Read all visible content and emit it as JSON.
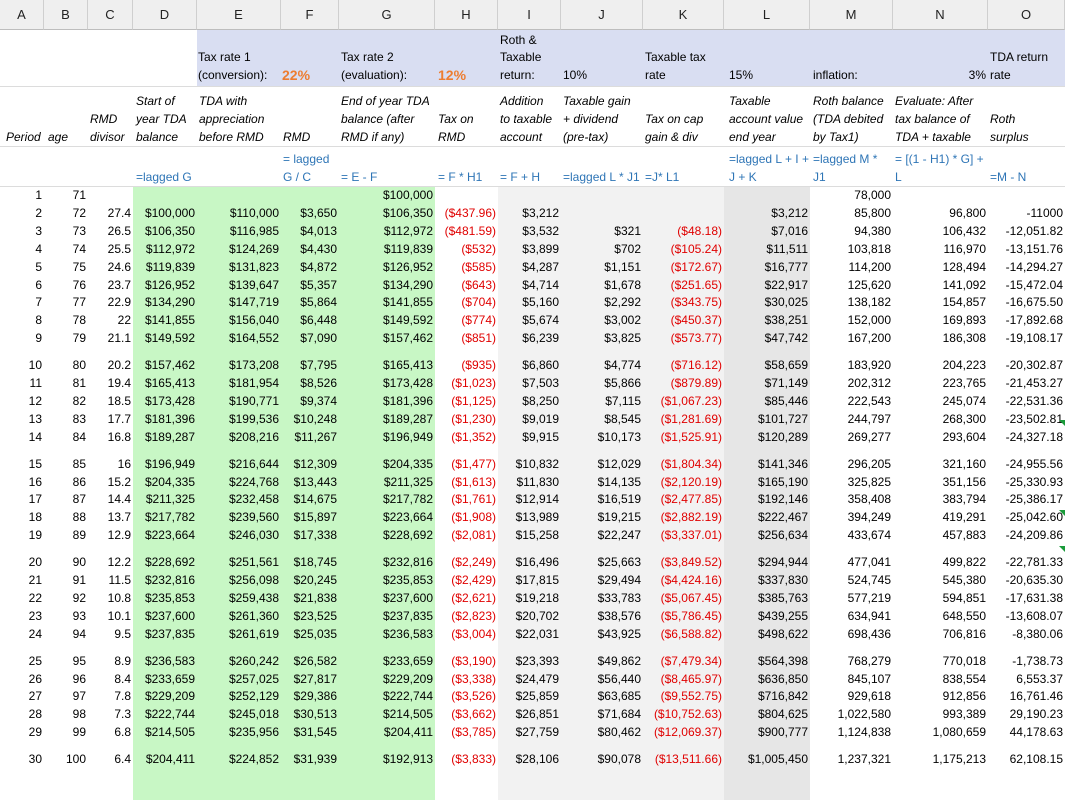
{
  "columns": [
    "A",
    "B",
    "C",
    "D",
    "E",
    "F",
    "G",
    "H",
    "I",
    "J",
    "K",
    "L",
    "M",
    "N",
    "O"
  ],
  "header": {
    "row1": {
      "e": "Tax rate 1",
      "e2": "(conversion):",
      "f": "22%",
      "g": "Tax rate 2",
      "g2": "(evaluation):",
      "h": "12%",
      "i1": "Roth &",
      "i2": "Taxable",
      "i3": "return:",
      "j": "10%",
      "k1": "Taxable tax",
      "k2": "rate",
      "l": "15%",
      "m": "inflation:",
      "n": "3%",
      "o1": "TDA return",
      "o2": "rate"
    },
    "row2": {
      "a": "Period",
      "b": "age",
      "c1": "RMD",
      "c2": "divisor",
      "d1": "Start of",
      "d2": "year TDA",
      "d3": "balance",
      "e1": "TDA with",
      "e2": "appreciation",
      "e3": "before RMD",
      "f": "RMD",
      "g1": "End of year TDA",
      "g2": "balance (after",
      "g3": "RMD if any)",
      "h1": "Tax on",
      "h2": "RMD",
      "i1": "Addition",
      "i2": "to taxable",
      "i3": "account",
      "j1": "Taxable gain",
      "j2": "+ dividend",
      "j3": "(pre-tax)",
      "k1": "Tax on cap",
      "k2": "gain & div",
      "l1": "Taxable",
      "l2": "account value",
      "l3": "end year",
      "m1": "Roth balance",
      "m2": "(TDA debited",
      "m3": "by Tax1)",
      "n1": "Evaluate: After",
      "n2": "tax balance of",
      "n3": "TDA + taxable",
      "o1": "Roth",
      "o2": "surplus"
    },
    "row3": {
      "d": "=lagged G",
      "f1": "= lagged",
      "f2": "G / C",
      "g": "= E - F",
      "h": "= F * H1",
      "i": "= F + H",
      "j": "=lagged L * J1",
      "k": "=J* L1",
      "l1": "=lagged L + I +",
      "l2": "J + K",
      "m1": "=lagged M *",
      "m2": "J1",
      "n1": "= [(1 - H1) * G] +",
      "n2": "L",
      "o": "=M - N"
    }
  },
  "rows": [
    {
      "a": "1",
      "b": "71",
      "c": "",
      "d": "",
      "e": "",
      "f": "",
      "g": "$100,000",
      "h": "",
      "i": "",
      "j": "",
      "k": "",
      "l": "",
      "m": "78,000",
      "n": "",
      "o": ""
    },
    {
      "a": "2",
      "b": "72",
      "c": "27.4",
      "d": "$100,000",
      "e": "$110,000",
      "f": "$3,650",
      "g": "$106,350",
      "h": "($437.96)",
      "i": "$3,212",
      "j": "",
      "k": "",
      "l": "$3,212",
      "m": "85,800",
      "n": "96,800",
      "o": "-11000"
    },
    {
      "a": "3",
      "b": "73",
      "c": "26.5",
      "d": "$106,350",
      "e": "$116,985",
      "f": "$4,013",
      "g": "$112,972",
      "h": "($481.59)",
      "i": "$3,532",
      "j": "$321",
      "k": "($48.18)",
      "l": "$7,016",
      "m": "94,380",
      "n": "106,432",
      "o": "-12,051.82"
    },
    {
      "a": "4",
      "b": "74",
      "c": "25.5",
      "d": "$112,972",
      "e": "$124,269",
      "f": "$4,430",
      "g": "$119,839",
      "h": "($532)",
      "i": "$3,899",
      "j": "$702",
      "k": "($105.24)",
      "l": "$11,511",
      "m": "103,818",
      "n": "116,970",
      "o": "-13,151.76"
    },
    {
      "a": "5",
      "b": "75",
      "c": "24.6",
      "d": "$119,839",
      "e": "$131,823",
      "f": "$4,872",
      "g": "$126,952",
      "h": "($585)",
      "i": "$4,287",
      "j": "$1,151",
      "k": "($172.67)",
      "l": "$16,777",
      "m": "114,200",
      "n": "128,494",
      "o": "-14,294.27"
    },
    {
      "a": "6",
      "b": "76",
      "c": "23.7",
      "d": "$126,952",
      "e": "$139,647",
      "f": "$5,357",
      "g": "$134,290",
      "h": "($643)",
      "i": "$4,714",
      "j": "$1,678",
      "k": "($251.65)",
      "l": "$22,917",
      "m": "125,620",
      "n": "141,092",
      "o": "-15,472.04"
    },
    {
      "a": "7",
      "b": "77",
      "c": "22.9",
      "d": "$134,290",
      "e": "$147,719",
      "f": "$5,864",
      "g": "$141,855",
      "h": "($704)",
      "i": "$5,160",
      "j": "$2,292",
      "k": "($343.75)",
      "l": "$30,025",
      "m": "138,182",
      "n": "154,857",
      "o": "-16,675.50"
    },
    {
      "a": "8",
      "b": "78",
      "c": "22",
      "d": "$141,855",
      "e": "$156,040",
      "f": "$6,448",
      "g": "$149,592",
      "h": "($774)",
      "i": "$5,674",
      "j": "$3,002",
      "k": "($450.37)",
      "l": "$38,251",
      "m": "152,000",
      "n": "169,893",
      "o": "-17,892.68"
    },
    {
      "a": "9",
      "b": "79",
      "c": "21.1",
      "d": "$149,592",
      "e": "$164,552",
      "f": "$7,090",
      "g": "$157,462",
      "h": "($851)",
      "i": "$6,239",
      "j": "$3,825",
      "k": "($573.77)",
      "l": "$47,742",
      "m": "167,200",
      "n": "186,308",
      "o": "-19,108.17"
    },
    {
      "a": "10",
      "b": "80",
      "c": "20.2",
      "d": "$157,462",
      "e": "$173,208",
      "f": "$7,795",
      "g": "$165,413",
      "h": "($935)",
      "i": "$6,860",
      "j": "$4,774",
      "k": "($716.12)",
      "l": "$58,659",
      "m": "183,920",
      "n": "204,223",
      "o": "-20,302.87"
    },
    {
      "a": "11",
      "b": "81",
      "c": "19.4",
      "d": "$165,413",
      "e": "$181,954",
      "f": "$8,526",
      "g": "$173,428",
      "h": "($1,023)",
      "i": "$7,503",
      "j": "$5,866",
      "k": "($879.89)",
      "l": "$71,149",
      "m": "202,312",
      "n": "223,765",
      "o": "-21,453.27"
    },
    {
      "a": "12",
      "b": "82",
      "c": "18.5",
      "d": "$173,428",
      "e": "$190,771",
      "f": "$9,374",
      "g": "$181,396",
      "h": "($1,125)",
      "i": "$8,250",
      "j": "$7,115",
      "k": "($1,067.23)",
      "l": "$85,446",
      "m": "222,543",
      "n": "245,074",
      "o": "-22,531.36"
    },
    {
      "a": "13",
      "b": "83",
      "c": "17.7",
      "d": "$181,396",
      "e": "$199,536",
      "f": "$10,248",
      "g": "$189,287",
      "h": "($1,230)",
      "i": "$9,019",
      "j": "$8,545",
      "k": "($1,281.69)",
      "l": "$101,727",
      "m": "244,797",
      "n": "268,300",
      "o": "-23,502.81"
    },
    {
      "a": "14",
      "b": "84",
      "c": "16.8",
      "d": "$189,287",
      "e": "$208,216",
      "f": "$11,267",
      "g": "$196,949",
      "h": "($1,352)",
      "i": "$9,915",
      "j": "$10,173",
      "k": "($1,525.91)",
      "l": "$120,289",
      "m": "269,277",
      "n": "293,604",
      "o": "-24,327.18"
    },
    {
      "a": "15",
      "b": "85",
      "c": "16",
      "d": "$196,949",
      "e": "$216,644",
      "f": "$12,309",
      "g": "$204,335",
      "h": "($1,477)",
      "i": "$10,832",
      "j": "$12,029",
      "k": "($1,804.34)",
      "l": "$141,346",
      "m": "296,205",
      "n": "321,160",
      "o": "-24,955.56"
    },
    {
      "a": "16",
      "b": "86",
      "c": "15.2",
      "d": "$204,335",
      "e": "$224,768",
      "f": "$13,443",
      "g": "$211,325",
      "h": "($1,613)",
      "i": "$11,830",
      "j": "$14,135",
      "k": "($2,120.19)",
      "l": "$165,190",
      "m": "325,825",
      "n": "351,156",
      "o": "-25,330.93"
    },
    {
      "a": "17",
      "b": "87",
      "c": "14.4",
      "d": "$211,325",
      "e": "$232,458",
      "f": "$14,675",
      "g": "$217,782",
      "h": "($1,761)",
      "i": "$12,914",
      "j": "$16,519",
      "k": "($2,477.85)",
      "l": "$192,146",
      "m": "358,408",
      "n": "383,794",
      "o": "-25,386.17"
    },
    {
      "a": "18",
      "b": "88",
      "c": "13.7",
      "d": "$217,782",
      "e": "$239,560",
      "f": "$15,897",
      "g": "$223,664",
      "h": "($1,908)",
      "i": "$13,989",
      "j": "$19,215",
      "k": "($2,882.19)",
      "l": "$222,467",
      "m": "394,249",
      "n": "419,291",
      "o": "-25,042.60"
    },
    {
      "a": "19",
      "b": "89",
      "c": "12.9",
      "d": "$223,664",
      "e": "$246,030",
      "f": "$17,338",
      "g": "$228,692",
      "h": "($2,081)",
      "i": "$15,258",
      "j": "$22,247",
      "k": "($3,337.01)",
      "l": "$256,634",
      "m": "433,674",
      "n": "457,883",
      "o": "-24,209.86"
    },
    {
      "a": "20",
      "b": "90",
      "c": "12.2",
      "d": "$228,692",
      "e": "$251,561",
      "f": "$18,745",
      "g": "$232,816",
      "h": "($2,249)",
      "i": "$16,496",
      "j": "$25,663",
      "k": "($3,849.52)",
      "l": "$294,944",
      "m": "477,041",
      "n": "499,822",
      "o": "-22,781.33"
    },
    {
      "a": "21",
      "b": "91",
      "c": "11.5",
      "d": "$232,816",
      "e": "$256,098",
      "f": "$20,245",
      "g": "$235,853",
      "h": "($2,429)",
      "i": "$17,815",
      "j": "$29,494",
      "k": "($4,424.16)",
      "l": "$337,830",
      "m": "524,745",
      "n": "545,380",
      "o": "-20,635.30"
    },
    {
      "a": "22",
      "b": "92",
      "c": "10.8",
      "d": "$235,853",
      "e": "$259,438",
      "f": "$21,838",
      "g": "$237,600",
      "h": "($2,621)",
      "i": "$19,218",
      "j": "$33,783",
      "k": "($5,067.45)",
      "l": "$385,763",
      "m": "577,219",
      "n": "594,851",
      "o": "-17,631.38"
    },
    {
      "a": "23",
      "b": "93",
      "c": "10.1",
      "d": "$237,600",
      "e": "$261,360",
      "f": "$23,525",
      "g": "$237,835",
      "h": "($2,823)",
      "i": "$20,702",
      "j": "$38,576",
      "k": "($5,786.45)",
      "l": "$439,255",
      "m": "634,941",
      "n": "648,550",
      "o": "-13,608.07"
    },
    {
      "a": "24",
      "b": "94",
      "c": "9.5",
      "d": "$237,835",
      "e": "$261,619",
      "f": "$25,035",
      "g": "$236,583",
      "h": "($3,004)",
      "i": "$22,031",
      "j": "$43,925",
      "k": "($6,588.82)",
      "l": "$498,622",
      "m": "698,436",
      "n": "706,816",
      "o": "-8,380.06"
    },
    {
      "a": "25",
      "b": "95",
      "c": "8.9",
      "d": "$236,583",
      "e": "$260,242",
      "f": "$26,582",
      "g": "$233,659",
      "h": "($3,190)",
      "i": "$23,393",
      "j": "$49,862",
      "k": "($7,479.34)",
      "l": "$564,398",
      "m": "768,279",
      "n": "770,018",
      "o": "-1,738.73"
    },
    {
      "a": "26",
      "b": "96",
      "c": "8.4",
      "d": "$233,659",
      "e": "$257,025",
      "f": "$27,817",
      "g": "$229,209",
      "h": "($3,338)",
      "i": "$24,479",
      "j": "$56,440",
      "k": "($8,465.97)",
      "l": "$636,850",
      "m": "845,107",
      "n": "838,554",
      "o": "6,553.37"
    },
    {
      "a": "27",
      "b": "97",
      "c": "7.8",
      "d": "$229,209",
      "e": "$252,129",
      "f": "$29,386",
      "g": "$222,744",
      "h": "($3,526)",
      "i": "$25,859",
      "j": "$63,685",
      "k": "($9,552.75)",
      "l": "$716,842",
      "m": "929,618",
      "n": "912,856",
      "o": "16,761.46"
    },
    {
      "a": "28",
      "b": "98",
      "c": "7.3",
      "d": "$222,744",
      "e": "$245,018",
      "f": "$30,513",
      "g": "$214,505",
      "h": "($3,662)",
      "i": "$26,851",
      "j": "$71,684",
      "k": "($10,752.63)",
      "l": "$804,625",
      "m": "1,022,580",
      "n": "993,389",
      "o": "29,190.23"
    },
    {
      "a": "29",
      "b": "99",
      "c": "6.8",
      "d": "$214,505",
      "e": "$235,956",
      "f": "$31,545",
      "g": "$204,411",
      "h": "($3,785)",
      "i": "$27,759",
      "j": "$80,462",
      "k": "($12,069.37)",
      "l": "$900,777",
      "m": "1,124,838",
      "n": "1,080,659",
      "o": "44,178.63"
    },
    {
      "a": "30",
      "b": "100",
      "c": "6.4",
      "d": "$204,411",
      "e": "$224,852",
      "f": "$31,939",
      "g": "$192,913",
      "h": "($3,833)",
      "i": "$28,106",
      "j": "$90,078",
      "k": "($13,511.66)",
      "l": "$1,005,450",
      "m": "1,237,321",
      "n": "1,175,213",
      "o": "62,108.15"
    }
  ]
}
